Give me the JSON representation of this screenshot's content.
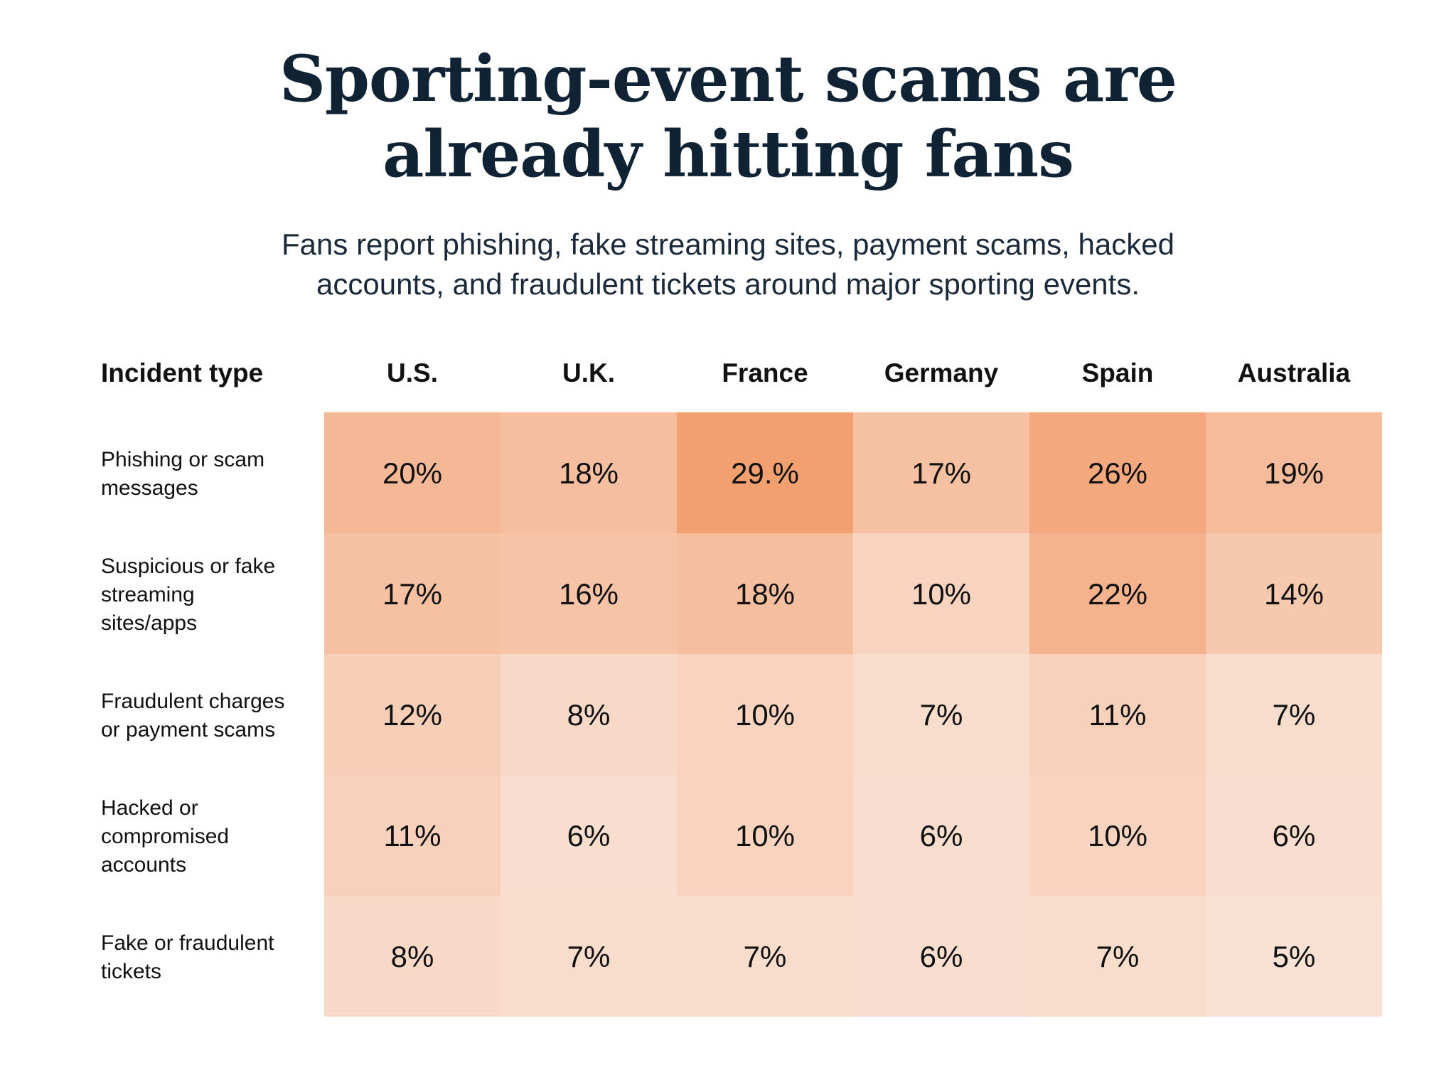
{
  "title_lines": [
    "Sporting-event scams are",
    "already hitting fans"
  ],
  "subtitle_lines": [
    "Fans report phishing, fake streaming sites, payment scams, hacked",
    "accounts, and fraudulent tickets around major sporting events."
  ],
  "colors": {
    "title": "#0f2335",
    "text": "#111111",
    "heat_low": "#f9e1d4",
    "heat_high": "#f2a070"
  },
  "chart_data": {
    "type": "heatmap",
    "row_header": "Incident type",
    "columns": [
      "U.S.",
      "U.K.",
      "France",
      "Germany",
      "Spain",
      "Australia"
    ],
    "rows": [
      {
        "label_lines": [
          "Phishing or scam",
          "messages"
        ],
        "values": [
          20,
          18,
          29,
          17,
          26,
          19
        ],
        "labels": [
          "20%",
          "18%",
          "29.%",
          "17%",
          "26%",
          "19%"
        ]
      },
      {
        "label_lines": [
          "Suspicious or fake",
          "streaming",
          "sites/apps"
        ],
        "values": [
          17,
          16,
          18,
          10,
          22,
          14
        ],
        "labels": [
          "17%",
          "16%",
          "18%",
          "10%",
          "22%",
          "14%"
        ]
      },
      {
        "label_lines": [
          "Fraudulent charges",
          "or payment scams"
        ],
        "values": [
          12,
          8,
          10,
          7,
          11,
          7
        ],
        "labels": [
          "12%",
          "8%",
          "10%",
          "7%",
          "11%",
          "7%"
        ]
      },
      {
        "label_lines": [
          "Hacked or",
          "compromised",
          "accounts"
        ],
        "values": [
          11,
          6,
          10,
          6,
          10,
          6
        ],
        "labels": [
          "11%",
          "6%",
          "10%",
          "6%",
          "10%",
          "6%"
        ]
      },
      {
        "label_lines": [
          "Fake or fraudulent",
          "tickets"
        ],
        "values": [
          8,
          7,
          7,
          6,
          7,
          5
        ],
        "labels": [
          "8%",
          "7%",
          "7%",
          "6%",
          "7%",
          "5%"
        ]
      }
    ],
    "value_range": [
      5,
      29
    ]
  }
}
